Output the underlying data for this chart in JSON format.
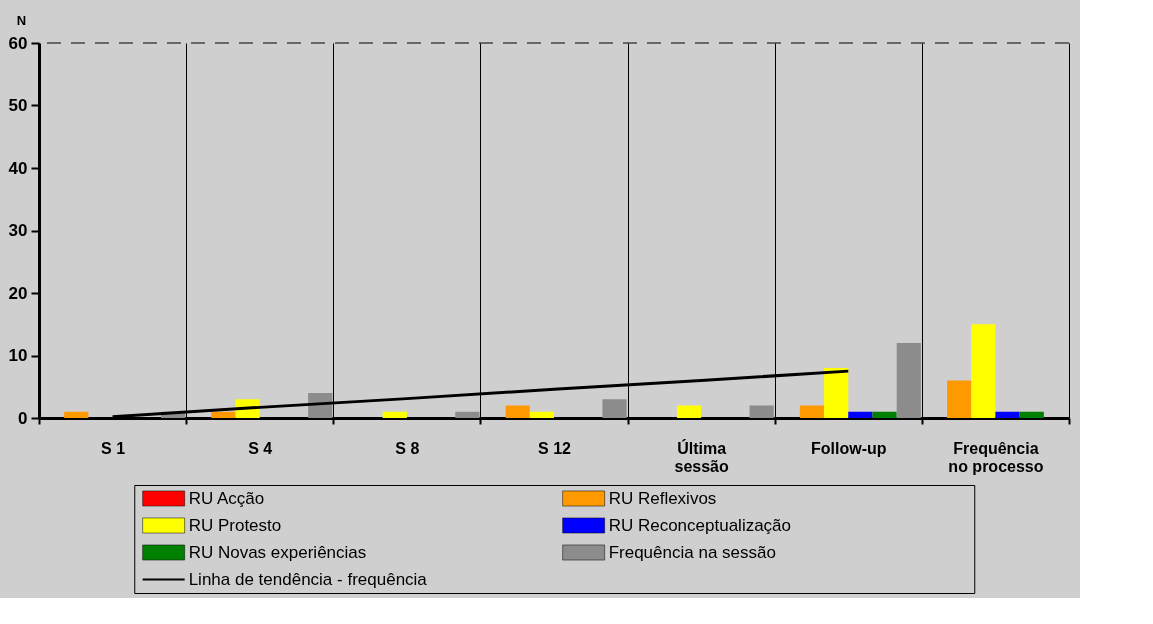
{
  "chart_data": {
    "type": "bar",
    "ylabel": "N",
    "categories": [
      "S 1",
      "S 4",
      "S 8",
      "S 12",
      "Última\nsessão",
      "Follow-up",
      "Frequência\nno processo"
    ],
    "series": [
      {
        "name": "RU Acção",
        "color": "#ff0000",
        "values": [
          0,
          0,
          0,
          0,
          0,
          0,
          0
        ]
      },
      {
        "name": "RU Reflexivos",
        "color": "#ff9900",
        "values": [
          1,
          1,
          0,
          2,
          0,
          2,
          6
        ]
      },
      {
        "name": "RU Protesto",
        "color": "#ffff00",
        "values": [
          0,
          3,
          1,
          1,
          2,
          8,
          15
        ]
      },
      {
        "name": "RU Reconceptualização",
        "color": "#0000ff",
        "values": [
          0,
          0,
          0,
          0,
          0,
          1,
          1
        ]
      },
      {
        "name": "RU Novas experiências",
        "color": "#008000",
        "values": [
          0,
          0,
          0,
          0,
          0,
          1,
          1
        ]
      },
      {
        "name": "Frequência na sessão",
        "color": "#8c8c8c",
        "values": [
          1,
          4,
          1,
          3,
          2,
          12,
          null
        ]
      },
      {
        "name": "Linha de tendência - frequência",
        "type": "line",
        "color": "#000000",
        "values": [
          0.2,
          1.7,
          3.1,
          4.6,
          6.0,
          7.5,
          null
        ]
      }
    ],
    "ylim": [
      0,
      60
    ],
    "yticks": [
      0,
      10,
      20,
      30,
      40,
      50,
      60
    ],
    "grid": "x",
    "legend": "bottom",
    "ref_lines": [
      {
        "axis": "y",
        "value": 60,
        "line_style": "dashed",
        "color": "#000000"
      }
    ]
  }
}
